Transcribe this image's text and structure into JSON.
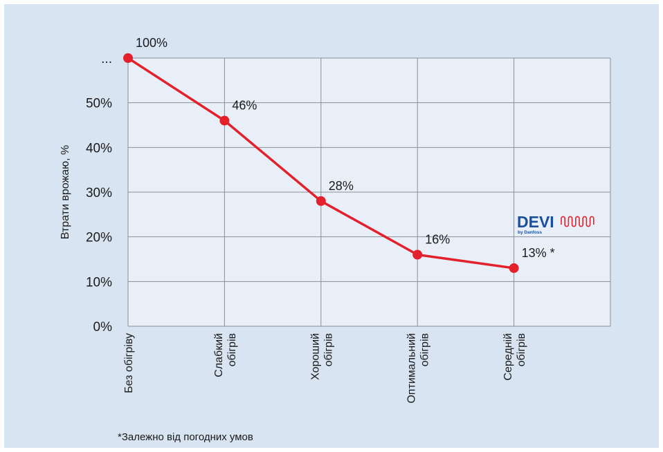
{
  "chart_data": {
    "type": "line",
    "title": "",
    "ylabel": "Втрати врожаю, %",
    "xlabel": "",
    "categories": [
      [
        "Без обігріву"
      ],
      [
        "Слабкий",
        "обігрів"
      ],
      [
        "Хороший",
        "обігрів"
      ],
      [
        "Оптимальний",
        "обігрів"
      ],
      [
        "Середній",
        "обігрів"
      ]
    ],
    "series": [
      {
        "values": [
          100,
          46,
          28,
          16,
          13
        ],
        "color": "#e3202b"
      }
    ],
    "data_labels": [
      "100%",
      "46%",
      "28%",
      "16%",
      "13% *"
    ],
    "y_ticks": [
      {
        "value": 0,
        "label": "0%"
      },
      {
        "value": 10,
        "label": "10%"
      },
      {
        "value": 20,
        "label": "20%"
      },
      {
        "value": 30,
        "label": "30%"
      },
      {
        "value": 40,
        "label": "40%"
      },
      {
        "value": 50,
        "label": "50%"
      },
      {
        "value": 100,
        "label": "..."
      }
    ],
    "y_axis_break": "50%–100% compressed (top row labelled ...)",
    "grid": true,
    "colors": {
      "background": "#d8e4f2",
      "plot_background": "#e9eff8",
      "gridline": "#8a8f96",
      "line": "#e3202b"
    }
  },
  "footnote": "*Залежно від погодних умов",
  "logo": {
    "brand": "DEVI",
    "sub": "by Danfoss"
  }
}
